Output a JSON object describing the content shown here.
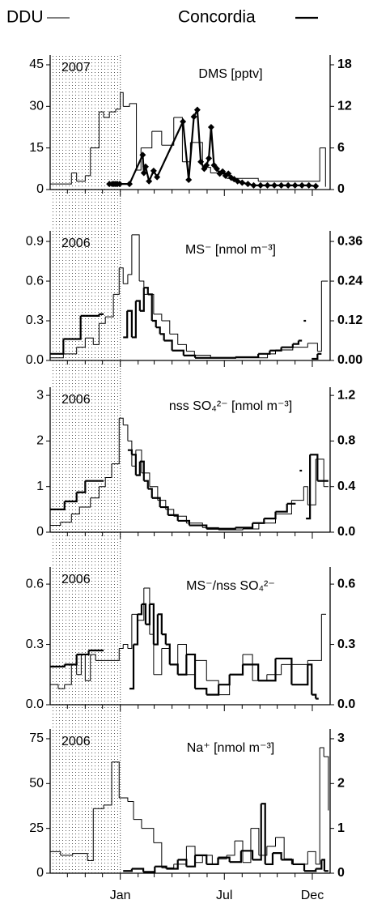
{
  "x_axis": {
    "xlim": [
      -122,
      365
    ],
    "shaded": [
      -122,
      0
    ],
    "xticks": [
      {
        "value": 0,
        "label": "Jan"
      },
      {
        "value": 181,
        "label": "Jul"
      },
      {
        "value": 334,
        "label": "Dec"
      }
    ],
    "xminorticks": [
      -92,
      -61,
      -31,
      31,
      59,
      90,
      120,
      151,
      212,
      243,
      273,
      304
    ]
  },
  "chart_data": [
    {
      "type": "line",
      "title": "DMS [pptv]",
      "year_label": "2007",
      "ylim": [
        0,
        48.5
      ],
      "yticks": [
        0,
        15,
        30,
        45
      ],
      "y2lim": [
        0,
        19.4
      ],
      "y2ticks": [
        0,
        6,
        12,
        18
      ],
      "series": [
        {
          "name": "DDU",
          "color": "#000000",
          "axis": "y",
          "style": "step",
          "line_width": 1,
          "x": [
            -122,
            -85,
            -76,
            -61,
            -52,
            -37,
            -29,
            -19,
            -8,
            0,
            5,
            16,
            28,
            36,
            55,
            72,
            93,
            108,
            122,
            143,
            157,
            185,
            240,
            347,
            357
          ],
          "values": [
            2,
            6,
            3,
            5,
            15,
            28,
            26,
            28,
            29,
            35,
            30,
            31,
            7,
            15,
            21,
            16,
            26,
            10,
            17,
            8,
            6,
            4,
            3,
            15,
            1
          ]
        },
        {
          "name": "Concordia",
          "color": "#000000",
          "axis": "y2",
          "style": "line-marker",
          "line_width": 2.2,
          "x": [
            -19,
            -14,
            -11,
            -8,
            -5,
            -1,
            16,
            39,
            41,
            44,
            50,
            58,
            64,
            109,
            119,
            128,
            134,
            140,
            146,
            150,
            154,
            158,
            163,
            168,
            173,
            178,
            183,
            188,
            193,
            198,
            204,
            212,
            222,
            232,
            244,
            256,
            268,
            280,
            292,
            304,
            316,
            328,
            340
          ],
          "values": [
            0.8,
            0.8,
            0.8,
            0.8,
            0.8,
            0.8,
            0.8,
            5,
            2.4,
            3.3,
            1.2,
            2.7,
            1.8,
            9.8,
            1.4,
            10.5,
            11.5,
            4,
            3,
            3.5,
            4.5,
            9,
            3.5,
            3,
            2.3,
            2.6,
            2,
            2.3,
            1.7,
            1.5,
            1.2,
            1,
            0.8,
            0.6,
            0.6,
            0.6,
            0.6,
            0.6,
            0.6,
            0.6,
            0.6,
            0.6,
            0.5
          ]
        }
      ]
    },
    {
      "type": "line",
      "title": "MS⁻ [nmol m⁻³]",
      "year_label": "2006",
      "ylim": [
        0,
        0.98
      ],
      "yticks": [
        {
          "value": 0,
          "label": "0.0"
        },
        0.3,
        0.6,
        0.9
      ],
      "y2lim": [
        0,
        0.392
      ],
      "y2ticks": [
        {
          "value": 0,
          "label": "0.00"
        },
        0.12,
        0.24,
        0.36
      ],
      "series": [
        {
          "name": "DDU",
          "color": "#000000",
          "axis": "y",
          "style": "step",
          "line_width": 1,
          "x": [
            -122,
            -99,
            -76,
            -61,
            -47,
            -37,
            -26,
            -12,
            -2,
            5,
            13,
            20,
            33,
            41,
            58,
            72,
            86,
            100,
            115,
            129,
            157,
            256,
            270,
            300,
            326,
            343,
            350,
            361
          ],
          "values": [
            0.02,
            0.05,
            0.1,
            0.17,
            0.12,
            0.28,
            0.33,
            0.5,
            0.7,
            0.58,
            0.65,
            0.95,
            0.6,
            0.5,
            0.35,
            0.3,
            0.2,
            0.12,
            0.07,
            0.04,
            0.02,
            0.05,
            0.08,
            0.1,
            0.13,
            0.07,
            0.6,
            0.6
          ]
        },
        {
          "name": "Concordia",
          "color": "#000000",
          "axis": "y2",
          "style": "step",
          "line_width": 2.2,
          "x": [
            -122,
            -99,
            -69,
            -37,
            -29,
            5,
            12,
            20,
            27,
            34,
            41,
            48,
            55,
            62,
            69,
            76,
            90,
            110,
            130,
            200,
            240,
            260,
            280,
            300,
            310,
            316,
            319,
            323,
            333,
            343,
            350
          ],
          "values": [
            0.02,
            0.065,
            0.135,
            0.14,
            null,
            0.07,
            0.15,
            0.07,
            0.18,
            0.15,
            0.22,
            0.2,
            0.12,
            0.1,
            0.08,
            0.06,
            0.03,
            0.015,
            0.008,
            0.01,
            0.02,
            0.03,
            0.04,
            0.05,
            0.06,
            null,
            0.12,
            null,
            0.005,
            0.02,
            null
          ]
        }
      ]
    },
    {
      "type": "line",
      "title": "nss SO₄²⁻ [nmol m⁻³]",
      "year_label": "2006",
      "ylim": [
        0,
        3.18
      ],
      "yticks": [
        0,
        1,
        2,
        3
      ],
      "y2lim": [
        0,
        1.272
      ],
      "y2ticks": [
        {
          "value": 0,
          "label": "0.0"
        },
        0.4,
        0.8,
        1.2
      ],
      "series": [
        {
          "name": "DDU",
          "color": "#000000",
          "axis": "y",
          "style": "step",
          "line_width": 1,
          "x": [
            -122,
            -104,
            -85,
            -71,
            -52,
            -37,
            -26,
            -15,
            -2,
            5,
            13,
            20,
            27,
            37,
            51,
            65,
            79,
            93,
            115,
            143,
            171,
            213,
            241,
            270,
            298,
            319,
            326,
            340,
            354,
            362
          ],
          "values": [
            0.15,
            0.22,
            0.4,
            0.55,
            0.75,
            1,
            1.2,
            1.5,
            2.5,
            2.35,
            2,
            1.45,
            1.8,
            1.3,
            1,
            0.7,
            0.5,
            0.35,
            0.2,
            0.1,
            0.05,
            0.07,
            0.2,
            0.4,
            0.7,
            1,
            0.6,
            1.6,
            1,
            1
          ]
        },
        {
          "name": "Concordia",
          "color": "#000000",
          "axis": "y2",
          "style": "step",
          "line_width": 2.2,
          "x": [
            -122,
            -97,
            -76,
            -61,
            -29,
            13,
            20,
            27,
            34,
            41,
            48,
            55,
            69,
            83,
            100,
            120,
            150,
            200,
            230,
            250,
            270,
            290,
            305,
            312,
            316,
            323,
            330,
            343,
            354,
            362
          ],
          "values": [
            0.2,
            0.27,
            0.35,
            0.45,
            null,
            0.72,
            0.68,
            0.5,
            0.62,
            0.45,
            0.38,
            0.3,
            0.22,
            0.15,
            0.1,
            0.06,
            0.03,
            0.04,
            0.08,
            0.12,
            0.18,
            0.25,
            null,
            0.54,
            null,
            0.12,
            0.68,
            0.45,
            0.45,
            null
          ]
        }
      ]
    },
    {
      "type": "line",
      "title": "MS⁻/nss SO₄²⁻",
      "year_label": "2006",
      "ylim": [
        0,
        0.685
      ],
      "yticks": [
        {
          "value": 0,
          "label": "0.0"
        },
        0.3,
        0.6
      ],
      "y2lim": [
        0,
        0.685
      ],
      "y2ticks": [
        {
          "value": 0,
          "label": "0.0"
        },
        0.3,
        0.6
      ],
      "series": [
        {
          "name": "DDU",
          "color": "#000000",
          "axis": "y",
          "style": "step",
          "line_width": 1,
          "x": [
            -122,
            -108,
            -97,
            -85,
            -76,
            -68,
            -61,
            -52,
            -43,
            -29,
            -2,
            5,
            13,
            20,
            30,
            41,
            51,
            58,
            72,
            86,
            100,
            115,
            130,
            150,
            171,
            190,
            213,
            230,
            255,
            280,
            298,
            326,
            350,
            358
          ],
          "values": [
            0.1,
            0.08,
            0.1,
            0.2,
            0.15,
            0.25,
            0.12,
            0.25,
            0.22,
            0.22,
            0.28,
            0.3,
            0.28,
            0.45,
            0.42,
            0.58,
            0.35,
            0.15,
            0.28,
            0.2,
            0.3,
            0.15,
            0.22,
            0.12,
            0.05,
            0.15,
            0.25,
            0.12,
            0.15,
            0.2,
            0.2,
            0.22,
            0.45,
            0.45
          ]
        },
        {
          "name": "Concordia",
          "color": "#000000",
          "axis": "y2",
          "style": "step",
          "line_width": 2.2,
          "x": [
            -122,
            -97,
            -76,
            -55,
            -29,
            16,
            23,
            30,
            37,
            44,
            51,
            58,
            65,
            72,
            79,
            86,
            100,
            115,
            130,
            150,
            171,
            190,
            213,
            240,
            270,
            298,
            326,
            333,
            340,
            345
          ],
          "values": [
            0.19,
            0.2,
            0.25,
            0.27,
            null,
            0.08,
            0.3,
            0.45,
            0.5,
            0.4,
            0.5,
            0.3,
            0.45,
            0.35,
            0.3,
            0.2,
            0.15,
            0.25,
            0.08,
            0.05,
            0.1,
            0.15,
            0.2,
            0.12,
            0.23,
            0.1,
            0.2,
            0.05,
            0.03,
            null
          ]
        }
      ]
    },
    {
      "type": "line",
      "title": "Na⁺ [nmol m⁻³]",
      "year_label": "2006",
      "ylim": [
        0,
        80.4
      ],
      "yticks": [
        0,
        25,
        50,
        75
      ],
      "y2lim": [
        0,
        3.216
      ],
      "y2ticks": [
        0,
        1,
        2,
        3
      ],
      "series": [
        {
          "name": "DDU",
          "color": "#000000",
          "axis": "y",
          "style": "step",
          "line_width": 1,
          "x": [
            -122,
            -104,
            -83,
            -57,
            -47,
            -29,
            -15,
            -2,
            13,
            23,
            37,
            58,
            72,
            93,
            115,
            130,
            143,
            160,
            171,
            185,
            199,
            213,
            227,
            241,
            255,
            270,
            285,
            298,
            326,
            340,
            347,
            354,
            362
          ],
          "values": [
            12,
            10,
            11,
            7,
            36,
            38,
            62,
            42,
            40,
            30,
            25,
            17,
            3,
            5,
            15,
            6,
            10,
            5,
            8,
            10,
            18,
            6,
            25,
            10,
            15,
            20,
            8,
            5,
            12,
            5,
            70,
            65,
            35
          ]
        },
        {
          "name": "Concordia",
          "color": "#000000",
          "axis": "y2",
          "style": "step",
          "line_width": 2.2,
          "x": [
            5,
            20,
            40,
            60,
            80,
            100,
            115,
            130,
            150,
            170,
            190,
            210,
            230,
            245,
            252,
            265,
            280,
            300,
            320,
            340,
            350,
            355,
            362
          ],
          "values": [
            0.05,
            0.1,
            0.03,
            0.15,
            0.1,
            0.3,
            0.15,
            0.4,
            0.2,
            0.35,
            0.25,
            0.5,
            0.3,
            1.55,
            0.2,
            0.45,
            0.3,
            0.2,
            0.05,
            0.1,
            0.3,
            0.05,
            null
          ]
        }
      ]
    }
  ]
}
